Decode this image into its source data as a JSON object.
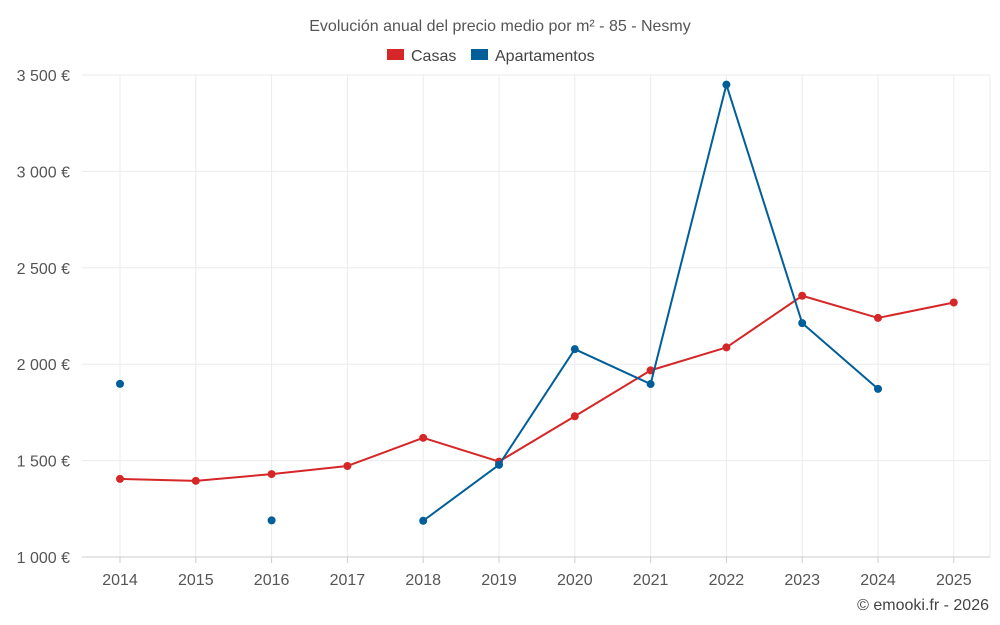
{
  "chart_data": {
    "type": "line",
    "title": "Evolución anual del precio medio por m² - 85 - Nesmy",
    "categories": [
      "2014",
      "2015",
      "2016",
      "2017",
      "2018",
      "2019",
      "2020",
      "2021",
      "2022",
      "2023",
      "2024",
      "2025"
    ],
    "ylim": [
      1000,
      3500
    ],
    "yticks": [
      1000,
      1500,
      2000,
      2500,
      3000,
      3500
    ],
    "ytick_labels": [
      "1 000 €",
      "1 500 €",
      "2 000 €",
      "2 500 €",
      "3 000 €",
      "3 500 €"
    ],
    "grid": true,
    "legend_position": "top-center",
    "series": [
      {
        "name": "Casas",
        "color": "#d62728",
        "values": [
          1405,
          1395,
          1430,
          1472,
          1618,
          1495,
          1730,
          1968,
          2087,
          2355,
          2240,
          2320
        ]
      },
      {
        "name": "Apartamentos",
        "color": "#005f99",
        "values": [
          1898,
          null,
          1190,
          null,
          1188,
          1478,
          2078,
          1897,
          3450,
          2213,
          1872,
          null
        ]
      }
    ]
  },
  "credit": "© emooki.fr - 2026"
}
